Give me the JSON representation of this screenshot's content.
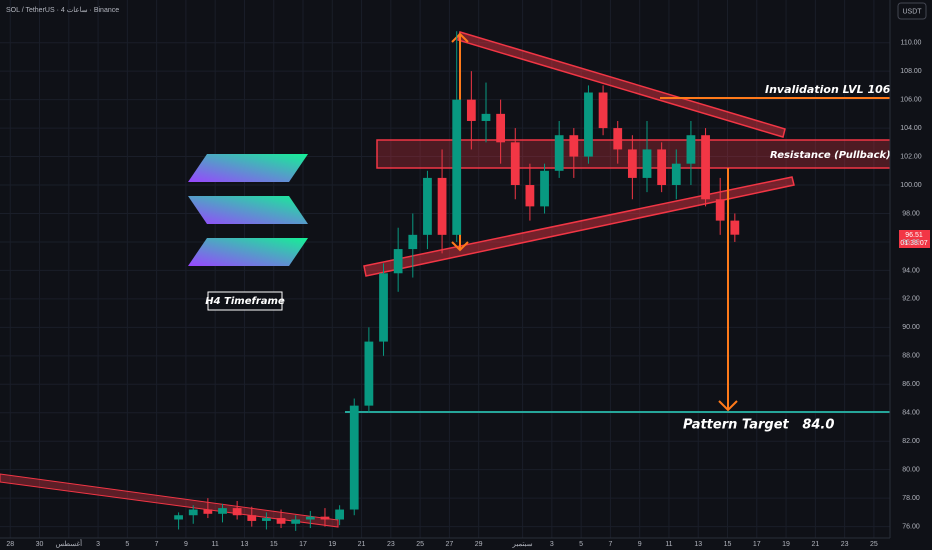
{
  "header": {
    "symbol": "SOL / TetherUS · 4 ساعات · Binance",
    "currency": "USDT"
  },
  "chart_data": {
    "type": "candlestick",
    "up_color": "#089981",
    "down_color": "#f23645",
    "xlim": [
      -0.7,
      60.1
    ],
    "ylim": [
      75.2,
      113.0
    ],
    "xticks": [
      {
        "value": 0,
        "label": "28"
      },
      {
        "value": 2,
        "label": "30"
      },
      {
        "value": 4,
        "label": "أغسطس"
      },
      {
        "value": 6,
        "label": "3"
      },
      {
        "value": 8,
        "label": "5"
      },
      {
        "value": 10,
        "label": "7"
      },
      {
        "value": 12,
        "label": "9"
      },
      {
        "value": 14,
        "label": "11"
      },
      {
        "value": 16,
        "label": "13"
      },
      {
        "value": 18,
        "label": "15"
      },
      {
        "value": 20,
        "label": "17"
      },
      {
        "value": 22,
        "label": "19"
      },
      {
        "value": 24,
        "label": "21"
      },
      {
        "value": 26,
        "label": "23"
      },
      {
        "value": 28,
        "label": "25"
      },
      {
        "value": 30,
        "label": "27"
      },
      {
        "value": 32,
        "label": "29"
      },
      {
        "value": 35,
        "label": "سبتمبر"
      },
      {
        "value": 37,
        "label": "3"
      },
      {
        "value": 39,
        "label": "5"
      },
      {
        "value": 41,
        "label": "7"
      },
      {
        "value": 43,
        "label": "9"
      },
      {
        "value": 45,
        "label": "11"
      },
      {
        "value": 47,
        "label": "13"
      },
      {
        "value": 49,
        "label": "15"
      },
      {
        "value": 51,
        "label": "17"
      },
      {
        "value": 53,
        "label": "19"
      },
      {
        "value": 55,
        "label": "21"
      },
      {
        "value": 57,
        "label": "23"
      },
      {
        "value": 59,
        "label": "25"
      }
    ],
    "yticks": [
      {
        "value": 76,
        "label": "76.00"
      },
      {
        "value": 78,
        "label": "78.00"
      },
      {
        "value": 80,
        "label": "80.00"
      },
      {
        "value": 82,
        "label": "82.00"
      },
      {
        "value": 84,
        "label": "84.00"
      },
      {
        "value": 86,
        "label": "86.00"
      },
      {
        "value": 88,
        "label": "88.00"
      },
      {
        "value": 90,
        "label": "90.00"
      },
      {
        "value": 92,
        "label": "92.00"
      },
      {
        "value": 94,
        "label": "94.00"
      },
      {
        "value": 96,
        "label": "96.00"
      },
      {
        "value": 98,
        "label": "98.00"
      },
      {
        "value": 100,
        "label": "100.00"
      },
      {
        "value": 102,
        "label": "102.00"
      },
      {
        "value": 104,
        "label": "104.00"
      },
      {
        "value": 106,
        "label": "106.00"
      },
      {
        "value": 108,
        "label": "108.00"
      },
      {
        "value": 110,
        "label": "110.00"
      }
    ],
    "x": [
      11.5,
      12.5,
      13.5,
      14.5,
      15.5,
      16.5,
      17.5,
      18.5,
      19.5,
      20.5,
      21.5,
      22.5,
      23.5,
      24.5,
      25.5,
      26.5,
      27.5,
      28.5,
      29.5,
      30.5,
      31.5,
      32.5,
      33.5,
      34.5,
      35.5,
      36.5,
      37.5,
      38.5,
      39.5,
      40.5,
      41.5,
      42.5,
      43.5,
      44.5,
      45.5,
      46.5,
      47.5,
      48.5,
      49.5
    ],
    "open": [
      76.5,
      76.8,
      77.2,
      76.9,
      77.3,
      76.8,
      76.4,
      76.6,
      76.2,
      76.5,
      76.7,
      76.5,
      77.2,
      84.5,
      89,
      93.8,
      95.5,
      96.5,
      100.5,
      96.5,
      106,
      104.5,
      105,
      103,
      100,
      98.5,
      101,
      103.5,
      102,
      106.5,
      104,
      102.5,
      100.5,
      102.5,
      100,
      101.5,
      103.5,
      99,
      97.5
    ],
    "high": [
      77,
      77.5,
      78,
      77.6,
      77.8,
      77.4,
      77,
      77.2,
      76.8,
      77.1,
      77.3,
      77.5,
      85,
      90,
      94.5,
      97,
      98,
      101,
      102.5,
      110.8,
      108,
      107.2,
      106,
      104,
      101.5,
      101.5,
      104.5,
      104,
      107,
      107,
      104.5,
      103.5,
      104.5,
      103,
      102.5,
      104.5,
      104,
      100.5,
      98
    ],
    "low": [
      75.8,
      76.2,
      76.6,
      76.3,
      76.5,
      76,
      75.8,
      75.9,
      75.7,
      75.9,
      76,
      76.1,
      76.8,
      84,
      88,
      92.5,
      93.5,
      95.5,
      95.2,
      96,
      102.5,
      103,
      101.5,
      99,
      97.5,
      98,
      100.5,
      100.5,
      101.5,
      103.5,
      101.5,
      99,
      99.5,
      99.5,
      99,
      100,
      98.5,
      96.5,
      96
    ],
    "close": [
      76.8,
      77.2,
      76.9,
      77.3,
      76.8,
      76.4,
      76.6,
      76.2,
      76.5,
      76.7,
      76.5,
      77.2,
      84.5,
      89,
      93.8,
      95.5,
      96.5,
      100.5,
      96.5,
      106,
      104.5,
      105,
      103,
      100,
      98.5,
      101,
      103.5,
      102,
      106.5,
      104,
      102.5,
      100.5,
      102.5,
      100,
      101.5,
      103.5,
      99,
      97.5,
      96.51
    ],
    "price_label": "96.51",
    "countdown": "01:38:07"
  },
  "annotations": {
    "invalidation": "Invalidation LVL 106.0",
    "resistance": "Resistance (Pullback)",
    "target": "Pattern Target   84.0",
    "timeframe": "H4 Timeframe"
  }
}
